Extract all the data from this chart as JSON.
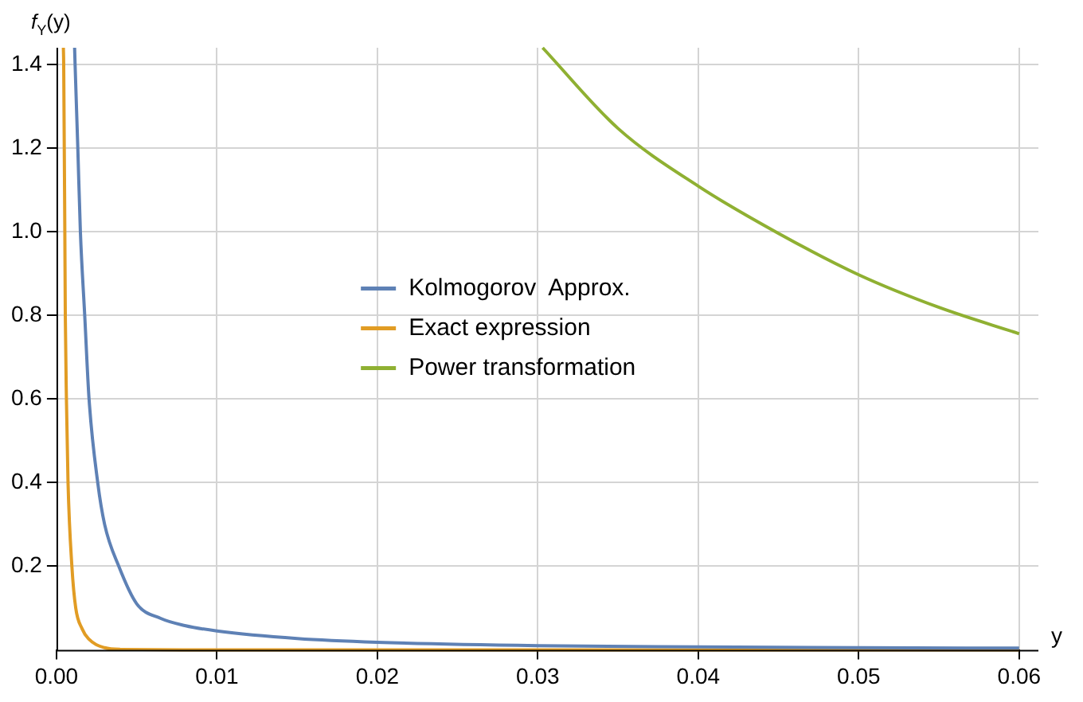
{
  "chart_data": {
    "type": "line",
    "xlabel": "y",
    "ylabel": "f$_{Y}$(y)",
    "xlim": [
      0,
      0.0612
    ],
    "ylim": [
      0,
      1.44
    ],
    "xticks": [
      {
        "value": 0,
        "label": "0.00"
      },
      {
        "value": 0.01,
        "label": "0.01"
      },
      {
        "value": 0.02,
        "label": "0.02"
      },
      {
        "value": 0.03,
        "label": "0.03"
      },
      {
        "value": 0.04,
        "label": "0.04"
      },
      {
        "value": 0.05,
        "label": "0.05"
      },
      {
        "value": 0.06,
        "label": "0.06"
      }
    ],
    "yticks": [
      0.2,
      0.4,
      0.6,
      0.8,
      {
        "value": 1.0,
        "label": "1.0"
      },
      1.2,
      1.4
    ],
    "grid": true,
    "legend": "center",
    "marker": "none",
    "line_style": "solid",
    "series": [
      {
        "name": "Kolmogorov  Approx.",
        "color": "#5e81b5",
        "x": [
          0.00113,
          0.00116,
          0.00133,
          0.00149,
          0.00176,
          0.00203,
          0.00257,
          0.003,
          0.00388,
          0.005,
          0.0065,
          0.008,
          0.01,
          0.015,
          0.02,
          0.03,
          0.04,
          0.05,
          0.06
        ],
        "values": [
          1.44,
          1.4,
          1.2,
          1.0,
          0.8,
          0.6,
          0.4,
          0.3,
          0.2,
          0.11,
          0.075,
          0.058,
          0.045,
          0.027,
          0.018,
          0.01,
          0.007,
          0.005,
          0.004
        ]
      },
      {
        "name": "Exact expression",
        "color": "#e19c24",
        "x": [
          0.00043,
          0.00045,
          0.00052,
          0.00055,
          0.00062,
          0.00072,
          0.00096,
          0.0012,
          0.0016,
          0.002,
          0.003,
          0.004,
          0.01,
          0.03,
          0.06
        ],
        "values": [
          1.44,
          1.4,
          1.0,
          0.8,
          0.6,
          0.4,
          0.2,
          0.1,
          0.05,
          0.026,
          0.005,
          0.001,
          0,
          0,
          0
        ]
      },
      {
        "name": "Power transformation",
        "color": "#8fb032",
        "x": [
          0.0303,
          0.035,
          0.04,
          0.045,
          0.05,
          0.055,
          0.06
        ],
        "values": [
          1.44,
          1.247,
          1.109,
          0.996,
          0.897,
          0.819,
          0.756
        ]
      }
    ]
  }
}
